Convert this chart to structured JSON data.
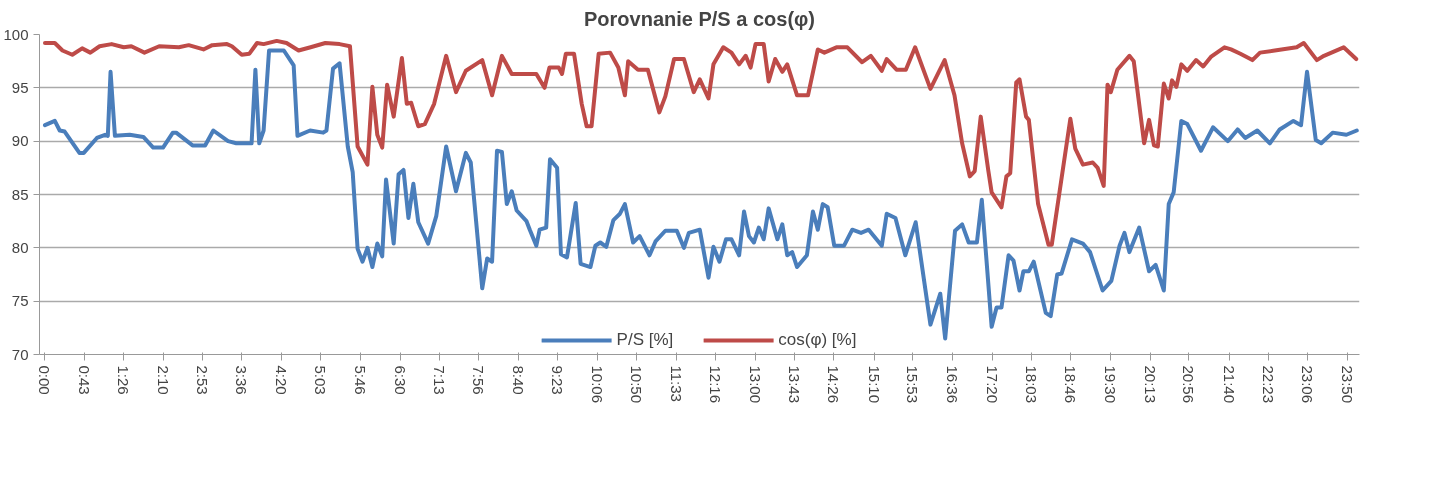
{
  "chart_data": {
    "type": "line",
    "title": "Porovnanie P/S a cos(φ)",
    "ylim": [
      70,
      100
    ],
    "yticks": [
      70,
      75,
      80,
      85,
      90,
      95,
      100
    ],
    "xlim": [
      -0.1,
      24.05
    ],
    "xticks": [
      {
        "value": 0,
        "label": "0:00"
      },
      {
        "value": 0.72,
        "label": "0:43"
      },
      {
        "value": 1.43,
        "label": "1:26"
      },
      {
        "value": 2.17,
        "label": "2:10"
      },
      {
        "value": 2.88,
        "label": "2:53"
      },
      {
        "value": 3.6,
        "label": "3:36"
      },
      {
        "value": 4.33,
        "label": "4:20"
      },
      {
        "value": 5.05,
        "label": "5:03"
      },
      {
        "value": 5.77,
        "label": "5:46"
      },
      {
        "value": 6.5,
        "label": "6:30"
      },
      {
        "value": 7.22,
        "label": "7:13"
      },
      {
        "value": 7.93,
        "label": "7:56"
      },
      {
        "value": 8.67,
        "label": "8:40"
      },
      {
        "value": 9.38,
        "label": "9:23"
      },
      {
        "value": 10.1,
        "label": "10:06"
      },
      {
        "value": 10.83,
        "label": "10:50"
      },
      {
        "value": 11.55,
        "label": "11:33"
      },
      {
        "value": 12.27,
        "label": "12:16"
      },
      {
        "value": 13,
        "label": "13:00"
      },
      {
        "value": 13.72,
        "label": "13:43"
      },
      {
        "value": 14.43,
        "label": "14:26"
      },
      {
        "value": 15.17,
        "label": "15:10"
      },
      {
        "value": 15.88,
        "label": "15:53"
      },
      {
        "value": 16.6,
        "label": "16:36"
      },
      {
        "value": 17.33,
        "label": "17:20"
      },
      {
        "value": 18.05,
        "label": "18:03"
      },
      {
        "value": 18.77,
        "label": "18:46"
      },
      {
        "value": 19.5,
        "label": "19:30"
      },
      {
        "value": 20.22,
        "label": "20:13"
      },
      {
        "value": 20.93,
        "label": "20:56"
      },
      {
        "value": 21.67,
        "label": "21:40"
      },
      {
        "value": 22.38,
        "label": "22:23"
      },
      {
        "value": 23.1,
        "label": "23:06"
      },
      {
        "value": 23.83,
        "label": "23:50"
      }
    ],
    "grid": "y",
    "legend": "bottom",
    "marker": "none",
    "line_style": "solid",
    "series": [
      {
        "name": "P/S [%]",
        "color": "#4a7ebb",
        "x": [
          0,
          0.18,
          0.27,
          0.36,
          0.63,
          0.71,
          0.95,
          1.1,
          1.15,
          1.2,
          1.28,
          1.55,
          1.8,
          1.98,
          2.16,
          2.34,
          2.4,
          2.7,
          2.93,
          3.08,
          3.35,
          3.5,
          3.78,
          3.85,
          3.92,
          4.0,
          4.1,
          4.37,
          4.55,
          4.62,
          4.85,
          5.09,
          5.15,
          5.27,
          5.39,
          5.54,
          5.63,
          5.72,
          5.81,
          5.9,
          5.99,
          6.08,
          6.17,
          6.24,
          6.38,
          6.47,
          6.56,
          6.65,
          6.74,
          6.83,
          7.01,
          7.16,
          7.34,
          7.52,
          7.7,
          7.79,
          8.0,
          8.09,
          8.18,
          8.27,
          8.36,
          8.45,
          8.54,
          8.63,
          8.81,
          8.87,
          8.99,
          9.05,
          9.17,
          9.24,
          9.37,
          9.44,
          9.55,
          9.71,
          9.8,
          9.98,
          10.07,
          10.16,
          10.27,
          10.4,
          10.52,
          10.61,
          10.76,
          10.88,
          11.06,
          11.17,
          11.35,
          11.56,
          11.69,
          11.78,
          11.98,
          12.14,
          12.23,
          12.34,
          12.46,
          12.56,
          12.7,
          12.79,
          12.88,
          12.97,
          13.06,
          13.15,
          13.24,
          13.4,
          13.49,
          13.58,
          13.67,
          13.76,
          13.94,
          14.05,
          14.14,
          14.23,
          14.32,
          14.44,
          14.62,
          14.77,
          14.93,
          15.07,
          15.31,
          15.4,
          15.56,
          15.74,
          15.93,
          16.2,
          16.38,
          16.47,
          16.65,
          16.78,
          16.9,
          17.05,
          17.14,
          17.32,
          17.41,
          17.5,
          17.63,
          17.72,
          17.83,
          17.9,
          18.0,
          18.09,
          18.31,
          18.4,
          18.52,
          18.6,
          18.79,
          18.99,
          19.12,
          19.35,
          19.51,
          19.66,
          19.75,
          19.84,
          20.02,
          20.2,
          20.32,
          20.47,
          20.56,
          20.65,
          20.79,
          20.9,
          21.15,
          21.37,
          21.64,
          21.82,
          21.96,
          22.18,
          22.41,
          22.59,
          22.84,
          22.98,
          23.09,
          23.25,
          23.35,
          23.56,
          23.81,
          24.0
        ],
        "values": [
          91.5,
          91.9,
          91.0,
          90.9,
          88.9,
          88.9,
          90.3,
          90.6,
          90.5,
          96.5,
          90.5,
          90.6,
          90.4,
          89.4,
          89.4,
          90.8,
          90.8,
          89.6,
          89.6,
          91.0,
          90.0,
          89.8,
          89.8,
          96.7,
          89.8,
          91.0,
          98.5,
          98.5,
          97.1,
          90.5,
          91.0,
          90.8,
          91.0,
          96.8,
          97.3,
          89.5,
          87.1,
          79.9,
          78.7,
          80.0,
          78.2,
          80.4,
          79.2,
          86.4,
          80.4,
          86.9,
          87.3,
          82.8,
          86.0,
          82.4,
          80.4,
          83.0,
          89.5,
          85.3,
          88.9,
          88.0,
          76.2,
          79.0,
          78.7,
          89.1,
          89.0,
          84.1,
          85.3,
          83.5,
          82.5,
          81.7,
          80.2,
          81.7,
          81.9,
          88.3,
          87.5,
          79.4,
          79.1,
          84.2,
          78.5,
          78.2,
          80.2,
          80.5,
          80.1,
          82.6,
          83.2,
          84.1,
          80.5,
          81.1,
          79.3,
          80.6,
          81.6,
          81.6,
          80.0,
          81.4,
          81.7,
          77.2,
          80.1,
          78.7,
          80.8,
          80.8,
          79.3,
          83.4,
          81.1,
          80.5,
          81.9,
          80.8,
          83.7,
          80.8,
          82.2,
          79.3,
          79.6,
          78.2,
          79.3,
          83.4,
          81.7,
          84.1,
          83.8,
          80.2,
          80.2,
          81.7,
          81.4,
          81.7,
          80.2,
          83.2,
          82.8,
          79.3,
          82.4,
          72.8,
          75.7,
          71.5,
          81.6,
          82.2,
          80.5,
          80.5,
          84.5,
          72.6,
          74.4,
          74.4,
          79.3,
          78.8,
          76.0,
          77.8,
          77.8,
          78.7,
          73.9,
          73.6,
          77.5,
          77.6,
          80.8,
          80.4,
          79.6,
          76.0,
          76.9,
          80.2,
          81.4,
          79.6,
          81.9,
          77.8,
          78.4,
          76.0,
          84.1,
          85.2,
          91.9,
          91.6,
          89.1,
          91.3,
          90.0,
          91.1,
          90.3,
          91.0,
          89.8,
          91.1,
          91.9,
          91.5,
          96.5,
          90.1,
          89.8,
          90.8,
          90.6,
          91.0
        ]
      },
      {
        "name": "cos(φ) [%]",
        "color": "#be4b48",
        "x": [
          0,
          0.18,
          0.32,
          0.5,
          0.68,
          0.83,
          1.0,
          1.22,
          1.44,
          1.58,
          1.82,
          2.09,
          2.45,
          2.63,
          2.9,
          3.06,
          3.33,
          3.42,
          3.6,
          3.74,
          3.88,
          4.0,
          4.24,
          4.42,
          4.64,
          4.86,
          5.13,
          5.39,
          5.58,
          5.72,
          5.9,
          5.99,
          6.08,
          6.17,
          6.26,
          6.38,
          6.53,
          6.62,
          6.7,
          6.83,
          6.95,
          7.12,
          7.34,
          7.52,
          7.7,
          8.0,
          8.18,
          8.36,
          8.54,
          8.87,
          8.99,
          9.14,
          9.23,
          9.4,
          9.46,
          9.53,
          9.68,
          9.82,
          9.91,
          10.0,
          10.13,
          10.34,
          10.49,
          10.61,
          10.67,
          10.85,
          11.03,
          11.24,
          11.35,
          11.51,
          11.69,
          11.87,
          11.98,
          12.14,
          12.23,
          12.41,
          12.56,
          12.7,
          12.82,
          12.91,
          13.0,
          13.15,
          13.24,
          13.36,
          13.49,
          13.58,
          13.76,
          13.96,
          14.14,
          14.26,
          14.48,
          14.68,
          14.95,
          15.11,
          15.31,
          15.4,
          15.58,
          15.75,
          15.92,
          16.2,
          16.46,
          16.64,
          16.78,
          16.92,
          17.01,
          17.12,
          17.26,
          17.32,
          17.5,
          17.59,
          17.66,
          17.77,
          17.83,
          17.95,
          18.0,
          18.17,
          18.36,
          18.42,
          18.76,
          18.85,
          18.99,
          19.17,
          19.26,
          19.37,
          19.44,
          19.5,
          19.62,
          19.84,
          19.92,
          20.11,
          20.2,
          20.29,
          20.36,
          20.47,
          20.56,
          20.62,
          20.7,
          20.79,
          20.9,
          21.06,
          21.19,
          21.33,
          21.58,
          21.7,
          21.87,
          22.09,
          22.23,
          22.5,
          22.9,
          23.03,
          23.27,
          23.4,
          23.76,
          23.99
        ],
        "values": [
          99.2,
          99.2,
          98.5,
          98.1,
          98.7,
          98.3,
          98.9,
          99.1,
          98.8,
          98.9,
          98.3,
          98.9,
          98.8,
          99.0,
          98.6,
          99.0,
          99.1,
          98.9,
          98.1,
          98.2,
          99.2,
          99.1,
          99.4,
          99.2,
          98.5,
          98.8,
          99.2,
          99.1,
          98.9,
          89.5,
          87.8,
          95.1,
          90.6,
          89.4,
          95.3,
          92.3,
          97.8,
          93.5,
          93.6,
          91.4,
          91.6,
          93.5,
          98.0,
          94.6,
          96.6,
          97.6,
          94.3,
          98.0,
          96.3,
          96.3,
          96.3,
          95.0,
          96.9,
          96.9,
          96.3,
          98.2,
          98.2,
          93.5,
          91.4,
          91.4,
          98.2,
          98.3,
          96.9,
          94.3,
          97.5,
          96.7,
          96.7,
          92.7,
          94.2,
          97.7,
          97.7,
          94.6,
          95.8,
          94.0,
          97.2,
          98.8,
          98.3,
          97.2,
          98.0,
          96.9,
          99.1,
          99.1,
          95.6,
          97.7,
          96.5,
          97.2,
          94.3,
          94.3,
          98.6,
          98.3,
          98.8,
          98.8,
          97.4,
          98.0,
          96.6,
          97.7,
          96.7,
          96.7,
          98.8,
          94.9,
          97.6,
          94.3,
          89.8,
          86.7,
          87.2,
          92.3,
          87.2,
          85.2,
          83.8,
          86.7,
          87.0,
          95.5,
          95.8,
          92.3,
          92.0,
          84.1,
          80.3,
          80.3,
          92.1,
          89.3,
          87.8,
          88.0,
          87.5,
          85.8,
          95.3,
          94.6,
          96.7,
          98.0,
          97.5,
          89.8,
          92.0,
          89.6,
          89.5,
          95.4,
          94.0,
          95.7,
          95.1,
          97.2,
          96.6,
          97.6,
          97.0,
          97.9,
          98.8,
          98.6,
          98.2,
          97.6,
          98.3,
          98.5,
          98.8,
          99.2,
          97.6,
          98.0,
          98.8,
          97.7
        ]
      }
    ]
  }
}
